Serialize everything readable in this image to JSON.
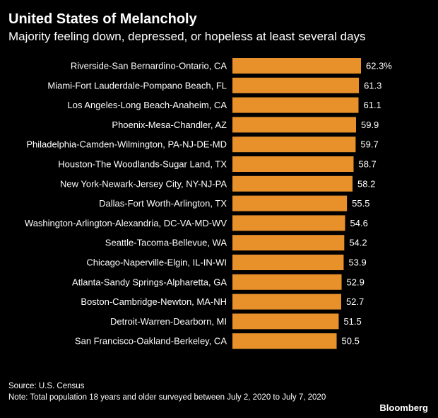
{
  "header": {
    "title": "United States of Melancholy",
    "subtitle": "Majority feeling down, depressed, or hopeless at least several days"
  },
  "footer": {
    "source": "Source: U.S. Census",
    "note": "Note: Total population 18 years and older surveyed between July 2, 2020 to July 7, 2020",
    "brand": "Bloomberg"
  },
  "colors": {
    "background": "#000000",
    "bar": "#E8902A",
    "text": "#ffffff"
  },
  "chart_data": {
    "type": "bar",
    "orientation": "horizontal",
    "title": "United States of Melancholy",
    "subtitle": "Majority feeling down, depressed, or hopeless at least several days",
    "categories": [
      "Riverside-San Bernardino-Ontario, CA",
      "Miami-Fort Lauderdale-Pompano Beach, FL",
      "Los Angeles-Long Beach-Anaheim, CA",
      "Phoenix-Mesa-Chandler, AZ",
      "Philadelphia-Camden-Wilmington, PA-NJ-DE-MD",
      "Houston-The Woodlands-Sugar Land, TX",
      "New York-Newark-Jersey City, NY-NJ-PA",
      "Dallas-Fort Worth-Arlington, TX",
      "Washington-Arlington-Alexandria, DC-VA-MD-WV",
      "Seattle-Tacoma-Bellevue, WA",
      "Chicago-Naperville-Elgin, IL-IN-WI",
      "Atlanta-Sandy Springs-Alpharetta, GA",
      "Boston-Cambridge-Newton, MA-NH",
      "Detroit-Warren-Dearborn, MI",
      "San Francisco-Oakland-Berkeley, CA"
    ],
    "values": [
      62.3,
      61.3,
      61.1,
      59.9,
      59.7,
      58.7,
      58.2,
      55.5,
      54.6,
      54.2,
      53.9,
      52.9,
      52.7,
      51.5,
      50.5
    ],
    "value_labels": [
      "62.3%",
      "61.3",
      "61.1",
      "59.9",
      "59.7",
      "58.7",
      "58.2",
      "55.5",
      "54.6",
      "54.2",
      "53.9",
      "52.9",
      "52.7",
      "51.5",
      "50.5"
    ],
    "xlim": [
      0,
      62.3
    ],
    "grid": false,
    "legend": "none"
  }
}
